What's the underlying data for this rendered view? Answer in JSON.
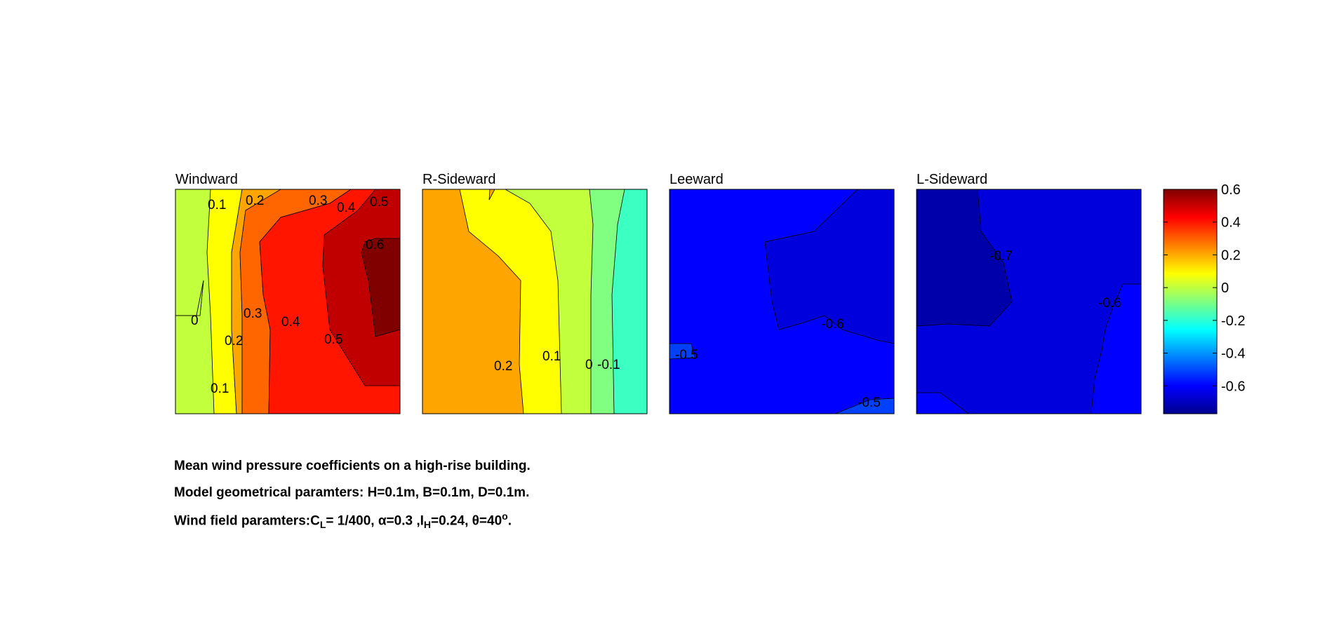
{
  "chart_data": [
    {
      "type": "contour",
      "title": "Windward",
      "colors": [
        "#C2FF3C",
        "#FFFF00",
        "#FFA500",
        "#FF6600",
        "#FF1500",
        "#C00000",
        "#800000"
      ],
      "contour_labels": [
        "0.1",
        "0.2",
        "0.3",
        "0.4",
        "0.5",
        "0.6",
        "0",
        "0.3",
        "0.4",
        "0.2",
        "0.5",
        "0.1"
      ]
    },
    {
      "type": "contour",
      "title": "R-Sideward",
      "colors": [
        "#FFA500",
        "#FFFF00",
        "#C2FF3C",
        "#80FF80",
        "#3CFFC2"
      ],
      "contour_labels": [
        "0.2",
        "0.1",
        "0",
        "-0.1"
      ]
    },
    {
      "type": "contour",
      "title": "Leeward",
      "colors": [
        "#0000FF",
        "#0000DD",
        "#0040FF"
      ],
      "contour_labels": [
        "-0.6",
        "-0.5",
        "-0.5"
      ]
    },
    {
      "type": "contour",
      "title": "L-Sideward",
      "colors": [
        "#0000DD",
        "#0000AA",
        "#0000FF"
      ],
      "contour_labels": [
        "-0.7",
        "-0.6"
      ]
    }
  ],
  "colorbar": {
    "colormap": "jet",
    "range": [
      -0.77,
      0.6
    ],
    "ticks": [
      0.6,
      0.4,
      0.2,
      0,
      -0.2,
      -0.4,
      -0.6
    ],
    "tick_labels": [
      "0.6",
      "0.4",
      "0.2",
      "0",
      "-0.2",
      "-0.4",
      "-0.6"
    ]
  },
  "caption": {
    "line1": "Mean wind pressure coefficients on a high-rise building.",
    "line2": "Model geometrical paramters: H=0.1m, B=0.1m, D=0.1m.",
    "line3_prefix": "Wind field paramters:C",
    "line3_cl_sub": "L",
    "line3_mid1": "= 1/400, ",
    "line3_alpha": "α=0.3 ,I",
    "line3_ih_sub": "H",
    "line3_mid2": "=0.24, ",
    "line3_theta": "θ=40",
    "line3_deg_sup": "o",
    "line3_end": "."
  }
}
